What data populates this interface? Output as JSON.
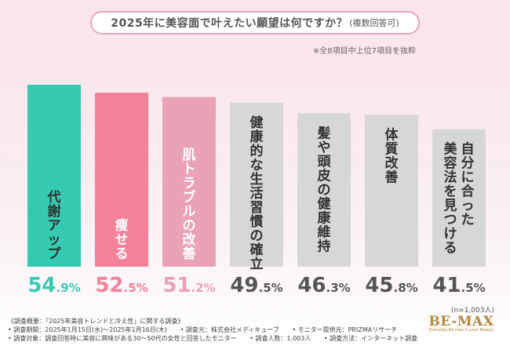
{
  "title": {
    "main": "2025年に美容面で叶えたい願望は何ですか？",
    "sub": "(複数回答可)"
  },
  "note_top": "※全8項目中上位7項目を抜粋",
  "sample_size": "(n=1,003人)",
  "footer": {
    "lines": [
      [
        "《調査概要：「2025年美容トレンドと冷え性」に関する調査》"
      ],
      [
        "• 調査期間：2025年1月15日(水)〜2025年1月16日(木)",
        "• 調査元：株式会社メディキューブ",
        "• モニター提供元：PRIZMAリサーチ"
      ],
      [
        "• 調査対象：調査回答時に美容に興味がある30〜50代の女性と回答したモニター",
        "• 調査人数：1,003人",
        "• 調査方法：インターネット調査"
      ]
    ]
  },
  "logo": {
    "main": "BE-MAX",
    "tagline": "Everyday Be max in your Beauty"
  },
  "chart_data": {
    "type": "bar",
    "title": "2025年に美容面で叶えたい願望は何ですか？(複数回答可)",
    "unit": "%",
    "ylim": [
      0,
      60
    ],
    "categories": [
      "代謝アップ",
      "痩せる",
      "肌トラブルの改善",
      "健康的な生活習慣の確立",
      "髪や頭皮の健康維持",
      "体質改善",
      "自分に合った美容法を見つける"
    ],
    "label_columns": [
      [
        "代謝アップ"
      ],
      [
        "痩せる"
      ],
      [
        "肌トラブルの改善"
      ],
      [
        "健康的な生活習慣の確立"
      ],
      [
        "髪や頭皮の健康維持"
      ],
      [
        "体質改善"
      ],
      [
        "自分に合った",
        "美容法を見つける"
      ]
    ],
    "values": [
      54.9,
      52.5,
      51.2,
      49.5,
      46.3,
      45.8,
      41.5
    ],
    "value_labels": [
      [
        "54",
        ".9%"
      ],
      [
        "52",
        ".5%"
      ],
      [
        "51",
        ".2%"
      ],
      [
        "49",
        ".5%"
      ],
      [
        "46",
        ".3%"
      ],
      [
        "45",
        ".8%"
      ],
      [
        "41",
        ".5%"
      ]
    ],
    "colors": [
      "#35cbb2",
      "#f4809a",
      "#e9a2b6",
      "#d7d7d7",
      "#d7d7d7",
      "#d7d7d7",
      "#d7d7d7"
    ],
    "value_colors": [
      "#35cbb2",
      "#f4809a",
      "#e9a2b6",
      "#555555",
      "#555555",
      "#555555",
      "#555555"
    ],
    "label_colors": [
      "#333333",
      "#ffffff",
      "#ffffff",
      "#333333",
      "#333333",
      "#333333",
      "#333333"
    ]
  }
}
